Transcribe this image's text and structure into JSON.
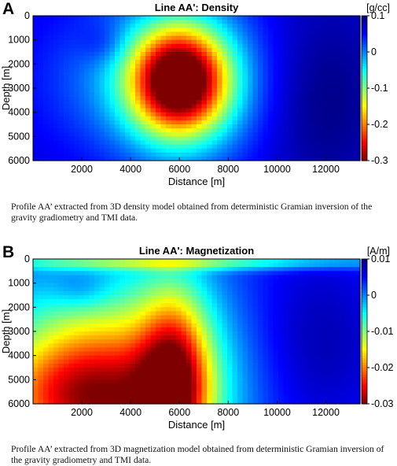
{
  "colors": {
    "colormap": [
      "#00007f",
      "#0000ff",
      "#007fff",
      "#00ffff",
      "#7fff7f",
      "#ffff00",
      "#ff7f00",
      "#ff0000",
      "#7f0000"
    ]
  },
  "chart_data": [
    {
      "type": "heatmap",
      "panel_label": "A",
      "title": "Line AA': Density",
      "xlabel": "Distance [m]",
      "ylabel": "Depth [m]",
      "xlim": [
        0,
        13400
      ],
      "ylim": [
        6000,
        0
      ],
      "y_inverted": true,
      "xticks": [
        2000,
        4000,
        6000,
        8000,
        10000,
        12000
      ],
      "xtick_labels": [
        "2000",
        "4000",
        "6000",
        "8000",
        "10000",
        "12000"
      ],
      "yticks": [
        0,
        1000,
        2000,
        3000,
        4000,
        5000,
        6000
      ],
      "ytick_labels": [
        "0",
        "1000",
        "2000",
        "3000",
        "4000",
        "5000",
        "6000"
      ],
      "colorbar": {
        "unit": "[g/cc]",
        "range": [
          -0.3,
          0.1
        ],
        "ticks": [
          0.1,
          0,
          -0.1,
          -0.2,
          -0.3
        ],
        "tick_labels": [
          "0.1",
          "0",
          "-0.1",
          "-0.2",
          "-0.3"
        ],
        "reversed": true
      },
      "field": {
        "background": 0.065,
        "anomalies": [
          {
            "x": 6000,
            "y": 2700,
            "sx": 1350,
            "sy": 1500,
            "amp": -0.34
          },
          {
            "x": 6000,
            "y": 2700,
            "sx": 2400,
            "sy": 2500,
            "amp": -0.12
          },
          {
            "x": 2200,
            "y": 2600,
            "sx": 2200,
            "sy": 2000,
            "amp": -0.025
          },
          {
            "x": 11800,
            "y": 3500,
            "sx": 1800,
            "sy": 2800,
            "amp": 0.035
          },
          {
            "x": 2900,
            "y": 1200,
            "sx": 700,
            "sy": 600,
            "amp": 0.03
          }
        ]
      },
      "caption": "Profile AA’ extracted from 3D density model obtained from deterministic Gramian inversion of the gravity gradiometry and TMI data."
    },
    {
      "type": "heatmap",
      "panel_label": "B",
      "title": "Line AA': Magnetization",
      "xlabel": "Distance [m]",
      "ylabel": "Depth [m]",
      "xlim": [
        0,
        13400
      ],
      "ylim": [
        6000,
        0
      ],
      "y_inverted": true,
      "xticks": [
        2000,
        4000,
        6000,
        8000,
        10000,
        12000
      ],
      "xtick_labels": [
        "2000",
        "4000",
        "6000",
        "8000",
        "10000",
        "12000"
      ],
      "yticks": [
        0,
        1000,
        2000,
        3000,
        4000,
        5000,
        6000
      ],
      "ytick_labels": [
        "0",
        "1000",
        "2000",
        "3000",
        "4000",
        "5000",
        "6000"
      ],
      "colorbar": {
        "unit": "[A/m]",
        "range": [
          -0.03,
          0.01
        ],
        "ticks": [
          0.01,
          0,
          -0.01,
          -0.02,
          -0.03
        ],
        "tick_labels": [
          "0.01",
          "0",
          "-0.01",
          "-0.02",
          "-0.03"
        ],
        "reversed": true
      },
      "field": {
        "background": 0.0035,
        "anomalies": [
          {
            "x": 5800,
            "y": 5200,
            "sx": 1000,
            "sy": 2600,
            "amp": -0.022
          },
          {
            "x": 2200,
            "y": 6000,
            "sx": 3000,
            "sy": 1800,
            "amp": -0.022
          },
          {
            "x": 4200,
            "y": 4200,
            "sx": 3200,
            "sy": 3000,
            "amp": -0.011
          },
          {
            "x": 1500,
            "y": 3600,
            "sx": 2800,
            "sy": 2200,
            "amp": -0.006
          },
          {
            "x": 11500,
            "y": 3500,
            "sx": 2200,
            "sy": 3000,
            "amp": 0.005
          },
          {
            "x": 6700,
            "y": 150,
            "sx": 6600,
            "sy": 220,
            "amp": -0.011
          },
          {
            "x": 2000,
            "y": 1300,
            "sx": 900,
            "sy": 600,
            "amp": 0.004
          }
        ]
      },
      "caption": "Profile AA’ extracted from 3D magnetization model obtained from deterministic Gramian inversion of the gravity gradiometry and TMI data."
    }
  ]
}
